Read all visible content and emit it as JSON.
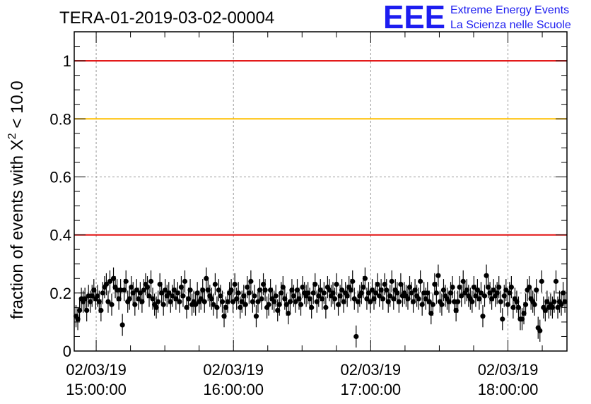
{
  "header": {
    "run_title": "TERA-01-2019-03-02-00004",
    "logo_mark": "EEE",
    "logo_line1": "Extreme Energy Events",
    "logo_line2": "La Scienza nelle Scuole"
  },
  "colors": {
    "threshold_red": "#e00000",
    "threshold_orange": "#ffbf00",
    "points": "#000000",
    "logo": "#1d1df0",
    "grid": "#999999"
  },
  "chart_data": {
    "type": "scatter",
    "title": "TERA-01-2019-03-02-00004",
    "xlabel": "",
    "ylabel": "fraction of events with X",
    "ylabel_sup": "2",
    "ylabel_tail": " < 10.0",
    "x_unit": "hours",
    "xlim": [
      14.84,
      18.43
    ],
    "ylim": [
      0,
      1.1
    ],
    "grid": true,
    "y_ticks": [
      {
        "value": 0,
        "label": "0"
      },
      {
        "value": 0.2,
        "label": "0.2"
      },
      {
        "value": 0.4,
        "label": "0.4"
      },
      {
        "value": 0.6,
        "label": "0.6"
      },
      {
        "value": 0.8,
        "label": "0.8"
      },
      {
        "value": 1,
        "label": "1"
      }
    ],
    "x_ticks": [
      {
        "value": 15,
        "date": "02/03/19",
        "time": "15:00:00"
      },
      {
        "value": 16,
        "date": "02/03/19",
        "time": "16:00:00"
      },
      {
        "value": 17,
        "date": "02/03/19",
        "time": "17:00:00"
      },
      {
        "value": 18,
        "date": "02/03/19",
        "time": "18:00:00"
      }
    ],
    "thresholds": [
      {
        "y": 1.0,
        "color": "red"
      },
      {
        "y": 0.8,
        "color": "orange"
      },
      {
        "y": 0.4,
        "color": "red"
      }
    ],
    "error_bar": 0.038,
    "series": [
      {
        "points": [
          [
            14.853,
            0.12
          ],
          [
            14.866,
            0.11
          ],
          [
            14.879,
            0.14
          ],
          [
            14.892,
            0.18
          ],
          [
            14.905,
            0.17
          ],
          [
            14.918,
            0.18
          ],
          [
            14.931,
            0.14
          ],
          [
            14.944,
            0.19
          ],
          [
            14.957,
            0.17
          ],
          [
            14.97,
            0.19
          ],
          [
            14.983,
            0.21
          ],
          [
            14.996,
            0.18
          ],
          [
            15.009,
            0.19
          ],
          [
            15.022,
            0.17
          ],
          [
            15.035,
            0.14
          ],
          [
            15.048,
            0.2
          ],
          [
            15.061,
            0.22
          ],
          [
            15.074,
            0.23
          ],
          [
            15.087,
            0.17
          ],
          [
            15.1,
            0.24
          ],
          [
            15.113,
            0.16
          ],
          [
            15.126,
            0.25
          ],
          [
            15.139,
            0.22
          ],
          [
            15.152,
            0.21
          ],
          [
            15.165,
            0.18
          ],
          [
            15.178,
            0.21
          ],
          [
            15.191,
            0.09
          ],
          [
            15.204,
            0.21
          ],
          [
            15.217,
            0.24
          ],
          [
            15.23,
            0.17
          ],
          [
            15.243,
            0.18
          ],
          [
            15.256,
            0.22
          ],
          [
            15.269,
            0.2
          ],
          [
            15.282,
            0.16
          ],
          [
            15.295,
            0.21
          ],
          [
            15.308,
            0.18
          ],
          [
            15.321,
            0.2
          ],
          [
            15.334,
            0.17
          ],
          [
            15.347,
            0.21
          ],
          [
            15.36,
            0.23
          ],
          [
            15.373,
            0.22
          ],
          [
            15.386,
            0.19
          ],
          [
            15.399,
            0.24
          ],
          [
            15.412,
            0.18
          ],
          [
            15.425,
            0.16
          ],
          [
            15.438,
            0.15
          ],
          [
            15.451,
            0.17
          ],
          [
            15.464,
            0.23
          ],
          [
            15.477,
            0.2
          ],
          [
            15.49,
            0.16
          ],
          [
            15.503,
            0.21
          ],
          [
            15.516,
            0.19
          ],
          [
            15.529,
            0.2
          ],
          [
            15.542,
            0.17
          ],
          [
            15.555,
            0.19
          ],
          [
            15.568,
            0.21
          ],
          [
            15.581,
            0.18
          ],
          [
            15.594,
            0.2
          ],
          [
            15.607,
            0.17
          ],
          [
            15.62,
            0.22
          ],
          [
            15.633,
            0.19
          ],
          [
            15.646,
            0.24
          ],
          [
            15.659,
            0.15
          ],
          [
            15.672,
            0.18
          ],
          [
            15.685,
            0.21
          ],
          [
            15.698,
            0.16
          ],
          [
            15.711,
            0.17
          ],
          [
            15.724,
            0.16
          ],
          [
            15.737,
            0.2
          ],
          [
            15.75,
            0.17
          ],
          [
            15.763,
            0.18
          ],
          [
            15.776,
            0.21
          ],
          [
            15.789,
            0.17
          ],
          [
            15.802,
            0.25
          ],
          [
            15.815,
            0.21
          ],
          [
            15.828,
            0.19
          ],
          [
            15.841,
            0.18
          ],
          [
            15.854,
            0.16
          ],
          [
            15.867,
            0.23
          ],
          [
            15.88,
            0.15
          ],
          [
            15.893,
            0.21
          ],
          [
            15.906,
            0.19
          ],
          [
            15.919,
            0.17
          ],
          [
            15.932,
            0.12
          ],
          [
            15.945,
            0.15
          ],
          [
            15.958,
            0.17
          ],
          [
            15.971,
            0.2
          ],
          [
            15.984,
            0.21
          ],
          [
            15.997,
            0.17
          ],
          [
            16.01,
            0.23
          ],
          [
            16.023,
            0.18
          ],
          [
            16.036,
            0.2
          ],
          [
            16.049,
            0.15
          ],
          [
            16.062,
            0.17
          ],
          [
            16.075,
            0.19
          ],
          [
            16.088,
            0.16
          ],
          [
            16.101,
            0.22
          ],
          [
            16.114,
            0.2
          ],
          [
            16.127,
            0.24
          ],
          [
            16.14,
            0.17
          ],
          [
            16.153,
            0.19
          ],
          [
            16.166,
            0.12
          ],
          [
            16.179,
            0.17
          ],
          [
            16.192,
            0.21
          ],
          [
            16.205,
            0.18
          ],
          [
            16.218,
            0.23
          ],
          [
            16.231,
            0.21
          ],
          [
            16.244,
            0.15
          ],
          [
            16.257,
            0.16
          ],
          [
            16.27,
            0.21
          ],
          [
            16.283,
            0.18
          ],
          [
            16.296,
            0.17
          ],
          [
            16.309,
            0.19
          ],
          [
            16.322,
            0.14
          ],
          [
            16.335,
            0.16
          ],
          [
            16.348,
            0.2
          ],
          [
            16.361,
            0.22
          ],
          [
            16.374,
            0.18
          ],
          [
            16.387,
            0.16
          ],
          [
            16.4,
            0.13
          ],
          [
            16.413,
            0.17
          ],
          [
            16.426,
            0.21
          ],
          [
            16.439,
            0.19
          ],
          [
            16.452,
            0.17
          ],
          [
            16.465,
            0.21
          ],
          [
            16.478,
            0.18
          ],
          [
            16.491,
            0.16
          ],
          [
            16.504,
            0.22
          ],
          [
            16.517,
            0.2
          ],
          [
            16.53,
            0.19
          ],
          [
            16.543,
            0.2
          ],
          [
            16.556,
            0.18
          ],
          [
            16.569,
            0.15
          ],
          [
            16.582,
            0.2
          ],
          [
            16.595,
            0.23
          ],
          [
            16.608,
            0.17
          ],
          [
            16.621,
            0.19
          ],
          [
            16.634,
            0.21
          ],
          [
            16.647,
            0.18
          ],
          [
            16.66,
            0.2
          ],
          [
            16.673,
            0.15
          ],
          [
            16.686,
            0.22
          ],
          [
            16.699,
            0.21
          ],
          [
            16.712,
            0.19
          ],
          [
            16.725,
            0.2
          ],
          [
            16.738,
            0.18
          ],
          [
            16.751,
            0.23
          ],
          [
            16.764,
            0.16
          ],
          [
            16.777,
            0.19
          ],
          [
            16.79,
            0.21
          ],
          [
            16.803,
            0.17
          ],
          [
            16.816,
            0.2
          ],
          [
            16.829,
            0.19
          ],
          [
            16.842,
            0.22
          ],
          [
            16.855,
            0.21
          ],
          [
            16.868,
            0.24
          ],
          [
            16.881,
            0.18
          ],
          [
            16.894,
            0.05
          ],
          [
            16.907,
            0.17
          ],
          [
            16.92,
            0.19
          ],
          [
            16.933,
            0.2
          ],
          [
            16.946,
            0.22
          ],
          [
            16.959,
            0.25
          ],
          [
            16.972,
            0.18
          ],
          [
            16.985,
            0.2
          ],
          [
            16.998,
            0.17
          ],
          [
            17.011,
            0.21
          ],
          [
            17.024,
            0.18
          ],
          [
            17.037,
            0.2
          ],
          [
            17.05,
            0.23
          ],
          [
            17.063,
            0.19
          ],
          [
            17.076,
            0.21
          ],
          [
            17.089,
            0.18
          ],
          [
            17.102,
            0.23
          ],
          [
            17.115,
            0.21
          ],
          [
            17.128,
            0.17
          ],
          [
            17.141,
            0.19
          ],
          [
            17.154,
            0.24
          ],
          [
            17.167,
            0.18
          ],
          [
            17.18,
            0.21
          ],
          [
            17.193,
            0.2
          ],
          [
            17.206,
            0.17
          ],
          [
            17.219,
            0.23
          ],
          [
            17.232,
            0.19
          ],
          [
            17.245,
            0.2
          ],
          [
            17.258,
            0.19
          ],
          [
            17.271,
            0.18
          ],
          [
            17.284,
            0.22
          ],
          [
            17.297,
            0.2
          ],
          [
            17.31,
            0.17
          ],
          [
            17.323,
            0.21
          ],
          [
            17.336,
            0.19
          ],
          [
            17.349,
            0.18
          ],
          [
            17.362,
            0.24
          ],
          [
            17.375,
            0.16
          ],
          [
            17.388,
            0.2
          ],
          [
            17.401,
            0.18
          ],
          [
            17.414,
            0.2
          ],
          [
            17.427,
            0.17
          ],
          [
            17.44,
            0.13
          ],
          [
            17.453,
            0.16
          ],
          [
            17.466,
            0.23
          ],
          [
            17.479,
            0.2
          ],
          [
            17.492,
            0.26
          ],
          [
            17.505,
            0.17
          ],
          [
            17.518,
            0.16
          ],
          [
            17.531,
            0.21
          ],
          [
            17.544,
            0.19
          ],
          [
            17.557,
            0.18
          ],
          [
            17.57,
            0.17
          ],
          [
            17.583,
            0.2
          ],
          [
            17.596,
            0.22
          ],
          [
            17.609,
            0.17
          ],
          [
            17.622,
            0.14
          ],
          [
            17.635,
            0.17
          ],
          [
            17.648,
            0.22
          ],
          [
            17.661,
            0.19
          ],
          [
            17.674,
            0.24
          ],
          [
            17.687,
            0.2
          ],
          [
            17.7,
            0.21
          ],
          [
            17.713,
            0.19
          ],
          [
            17.726,
            0.18
          ],
          [
            17.739,
            0.17
          ],
          [
            17.752,
            0.22
          ],
          [
            17.765,
            0.19
          ],
          [
            17.778,
            0.21
          ],
          [
            17.791,
            0.18
          ],
          [
            17.804,
            0.2
          ],
          [
            17.817,
            0.12
          ],
          [
            17.83,
            0.19
          ],
          [
            17.843,
            0.26
          ],
          [
            17.856,
            0.22
          ],
          [
            17.869,
            0.2
          ],
          [
            17.882,
            0.18
          ],
          [
            17.895,
            0.21
          ],
          [
            17.908,
            0.19
          ],
          [
            17.921,
            0.2
          ],
          [
            17.934,
            0.22
          ],
          [
            17.947,
            0.17
          ],
          [
            17.96,
            0.11
          ],
          [
            17.973,
            0.19
          ],
          [
            17.986,
            0.21
          ],
          [
            17.999,
            0.16
          ],
          [
            18.012,
            0.2
          ],
          [
            18.025,
            0.22
          ],
          [
            18.038,
            0.15
          ],
          [
            18.051,
            0.18
          ],
          [
            18.064,
            0.17
          ],
          [
            18.077,
            0.15
          ],
          [
            18.09,
            0.11
          ],
          [
            18.103,
            0.11
          ],
          [
            18.116,
            0.13
          ],
          [
            18.129,
            0.16
          ],
          [
            18.142,
            0.21
          ],
          [
            18.155,
            0.22
          ],
          [
            18.168,
            0.18
          ],
          [
            18.181,
            0.17
          ],
          [
            18.194,
            0.16
          ],
          [
            18.207,
            0.21
          ],
          [
            18.22,
            0.08
          ],
          [
            18.233,
            0.07
          ],
          [
            18.246,
            0.24
          ],
          [
            18.259,
            0.15
          ],
          [
            18.272,
            0.14
          ],
          [
            18.285,
            0.17
          ],
          [
            18.298,
            0.15
          ],
          [
            18.311,
            0.16
          ],
          [
            18.324,
            0.15
          ],
          [
            18.337,
            0.17
          ],
          [
            18.35,
            0.24
          ],
          [
            18.363,
            0.15
          ],
          [
            18.376,
            0.17
          ],
          [
            18.389,
            0.16
          ],
          [
            18.402,
            0.2
          ],
          [
            18.415,
            0.17
          ]
        ]
      }
    ]
  }
}
